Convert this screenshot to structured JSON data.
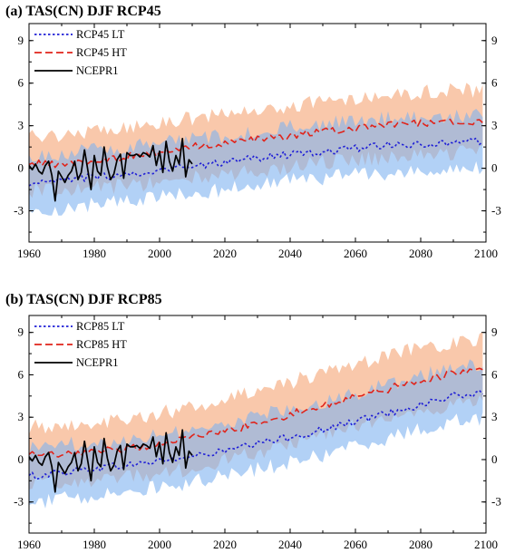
{
  "chart_data": [
    {
      "type": "line",
      "title": "(a)  TAS(CN) DJF RCP45",
      "xlim": [
        1960,
        2100
      ],
      "ylim": [
        -5.2,
        10.2
      ],
      "xticks": [
        "1960",
        "1980",
        "2000",
        "2020",
        "2040",
        "2060",
        "2080",
        "2100"
      ],
      "yticks": [
        "-3",
        "0",
        "3",
        "6",
        "9"
      ],
      "grid": false,
      "legend_position": "top-left",
      "series": [
        {
          "name": "RCP45 LT",
          "style": "dotted",
          "color": "#1f1fd6",
          "x": [
            1960,
            1970,
            1980,
            1990,
            2000,
            2010,
            2020,
            2030,
            2040,
            2050,
            2060,
            2070,
            2080,
            2090,
            2099
          ],
          "values": [
            -1.2,
            -0.9,
            -0.6,
            -0.4,
            -0.1,
            0.1,
            0.4,
            0.7,
            1.0,
            1.2,
            1.4,
            1.6,
            1.7,
            1.8,
            1.9
          ]
        },
        {
          "name": "RCP45 HT",
          "style": "dashed",
          "color": "#e0241b",
          "x": [
            1960,
            1970,
            1980,
            1990,
            2000,
            2010,
            2020,
            2030,
            2040,
            2050,
            2060,
            2070,
            2080,
            2090,
            2099
          ],
          "values": [
            0.3,
            0.3,
            0.5,
            0.8,
            1.1,
            1.5,
            1.7,
            2.0,
            2.3,
            2.6,
            2.8,
            3.0,
            3.2,
            3.3,
            3.2
          ]
        },
        {
          "name": "NCEPR1",
          "style": "solid",
          "color": "#000000",
          "x": [
            1960,
            1961,
            1962,
            1963,
            1964,
            1965,
            1966,
            1967,
            1968,
            1969,
            1970,
            1971,
            1972,
            1973,
            1974,
            1975,
            1976,
            1977,
            1978,
            1979,
            1980,
            1981,
            1982,
            1983,
            1984,
            1985,
            1986,
            1987,
            1988,
            1989,
            1990,
            1991,
            1992,
            1993,
            1994,
            1995,
            1996,
            1997,
            1998,
            1999,
            2000,
            2001,
            2002,
            2003,
            2004,
            2005,
            2006,
            2007,
            2008,
            2009,
            2010
          ],
          "values": [
            0.2,
            -0.1,
            0.3,
            -0.2,
            -0.4,
            0.2,
            0.5,
            -0.5,
            -2.3,
            -0.2,
            -0.6,
            -1.0,
            -0.5,
            -0.2,
            0.5,
            -0.8,
            -0.3,
            1.3,
            -0.1,
            -1.5,
            0.9,
            -0.2,
            -0.5,
            1.5,
            0.1,
            -0.8,
            -0.4,
            0.6,
            1.0,
            -0.7,
            1.1,
            0.9,
            0.9,
            1.0,
            0.8,
            1.1,
            1.0,
            0.8,
            1.6,
            0.2,
            1.2,
            -0.3,
            1.9,
            0.5,
            -0.2,
            0.9,
            0.3,
            2.1,
            -0.6,
            0.6,
            0.3
          ]
        }
      ],
      "bands": [
        {
          "series": "RCP45 HT",
          "color": "#f7b58f",
          "x": [
            1960,
            1970,
            1980,
            1990,
            2000,
            2010,
            2020,
            2030,
            2040,
            2050,
            2060,
            2070,
            2080,
            2090,
            2099
          ],
          "upper": [
            2.3,
            2.4,
            2.6,
            2.9,
            3.2,
            3.5,
            3.8,
            4.1,
            4.4,
            4.7,
            5.0,
            5.2,
            5.4,
            5.5,
            5.5
          ],
          "lower": [
            -1.6,
            -1.5,
            -1.4,
            -1.2,
            -1.0,
            -0.7,
            -0.5,
            -0.2,
            0.1,
            0.4,
            0.6,
            0.8,
            1.0,
            1.1,
            1.1
          ]
        },
        {
          "series": "RCP45 LT",
          "color": "#7fb3f0",
          "x": [
            1960,
            1970,
            1980,
            1990,
            2000,
            2010,
            2020,
            2030,
            2040,
            2050,
            2060,
            2070,
            2080,
            2090,
            2099
          ],
          "upper": [
            0.8,
            1.0,
            1.3,
            1.5,
            1.8,
            2.0,
            2.3,
            2.6,
            2.9,
            3.1,
            3.3,
            3.5,
            3.6,
            3.7,
            3.8
          ],
          "lower": [
            -3.1,
            -2.8,
            -2.5,
            -2.3,
            -2.0,
            -1.8,
            -1.5,
            -1.2,
            -0.9,
            -0.7,
            -0.5,
            -0.3,
            -0.2,
            -0.1,
            0.0
          ]
        }
      ]
    },
    {
      "type": "line",
      "title": "(b)  TAS(CN) DJF RCP85",
      "xlim": [
        1960,
        2100
      ],
      "ylim": [
        -5.2,
        10.2
      ],
      "xticks": [
        "1960",
        "1980",
        "2000",
        "2020",
        "2040",
        "2060",
        "2080",
        "2100"
      ],
      "yticks": [
        "-3",
        "0",
        "3",
        "6",
        "9"
      ],
      "grid": false,
      "legend_position": "top-left",
      "series": [
        {
          "name": "RCP85 LT",
          "style": "dotted",
          "color": "#1f1fd6",
          "x": [
            1960,
            1970,
            1980,
            1990,
            2000,
            2010,
            2020,
            2030,
            2040,
            2050,
            2060,
            2070,
            2080,
            2090,
            2099
          ],
          "values": [
            -1.2,
            -0.9,
            -0.6,
            -0.4,
            -0.1,
            0.2,
            0.6,
            1.1,
            1.6,
            2.1,
            2.7,
            3.3,
            3.9,
            4.5,
            4.7
          ]
        },
        {
          "name": "RCP85 HT",
          "style": "dashed",
          "color": "#e0241b",
          "x": [
            1960,
            1970,
            1980,
            1990,
            2000,
            2010,
            2020,
            2030,
            2040,
            2050,
            2060,
            2070,
            2080,
            2090,
            2099
          ],
          "values": [
            0.3,
            0.3,
            0.5,
            0.8,
            1.1,
            1.6,
            2.0,
            2.6,
            3.2,
            3.8,
            4.5,
            5.0,
            5.6,
            6.1,
            6.4
          ]
        },
        {
          "name": "NCEPR1",
          "style": "solid",
          "color": "#000000",
          "x": [
            1960,
            1961,
            1962,
            1963,
            1964,
            1965,
            1966,
            1967,
            1968,
            1969,
            1970,
            1971,
            1972,
            1973,
            1974,
            1975,
            1976,
            1977,
            1978,
            1979,
            1980,
            1981,
            1982,
            1983,
            1984,
            1985,
            1986,
            1987,
            1988,
            1989,
            1990,
            1991,
            1992,
            1993,
            1994,
            1995,
            1996,
            1997,
            1998,
            1999,
            2000,
            2001,
            2002,
            2003,
            2004,
            2005,
            2006,
            2007,
            2008,
            2009,
            2010
          ],
          "values": [
            0.2,
            -0.1,
            0.3,
            -0.2,
            -0.4,
            0.2,
            0.5,
            -0.5,
            -2.3,
            -0.2,
            -0.6,
            -1.0,
            -0.5,
            -0.2,
            0.5,
            -0.8,
            -0.3,
            1.3,
            -0.1,
            -1.5,
            0.9,
            -0.2,
            -0.5,
            1.5,
            0.1,
            -0.8,
            -0.4,
            0.6,
            1.0,
            -0.7,
            1.1,
            0.9,
            0.9,
            1.0,
            0.8,
            1.1,
            1.0,
            0.8,
            1.6,
            0.2,
            1.2,
            -0.3,
            1.9,
            0.5,
            -0.2,
            0.9,
            0.3,
            2.1,
            -0.6,
            0.6,
            0.3
          ]
        }
      ],
      "bands": [
        {
          "series": "RCP85 HT",
          "color": "#f7b58f",
          "x": [
            1960,
            1970,
            1980,
            1990,
            2000,
            2010,
            2020,
            2030,
            2040,
            2050,
            2060,
            2070,
            2080,
            2090,
            2099
          ],
          "upper": [
            2.3,
            2.4,
            2.6,
            2.9,
            3.3,
            3.7,
            4.3,
            4.9,
            5.5,
            6.1,
            6.8,
            7.3,
            7.9,
            8.3,
            8.6
          ],
          "lower": [
            -1.6,
            -1.5,
            -1.4,
            -1.2,
            -1.0,
            -0.6,
            -0.1,
            0.5,
            1.1,
            1.7,
            2.4,
            2.9,
            3.5,
            3.9,
            4.2
          ]
        },
        {
          "series": "RCP85 LT",
          "color": "#7fb3f0",
          "x": [
            1960,
            1970,
            1980,
            1990,
            2000,
            2010,
            2020,
            2030,
            2040,
            2050,
            2060,
            2070,
            2080,
            2090,
            2099
          ],
          "upper": [
            0.8,
            1.0,
            1.3,
            1.5,
            1.8,
            2.2,
            2.6,
            3.1,
            3.6,
            4.1,
            4.7,
            5.3,
            5.9,
            6.5,
            6.7
          ],
          "lower": [
            -3.1,
            -2.8,
            -2.5,
            -2.3,
            -2.0,
            -1.6,
            -1.2,
            -0.7,
            -0.2,
            0.3,
            0.9,
            1.5,
            2.1,
            2.7,
            2.9
          ]
        }
      ]
    }
  ]
}
